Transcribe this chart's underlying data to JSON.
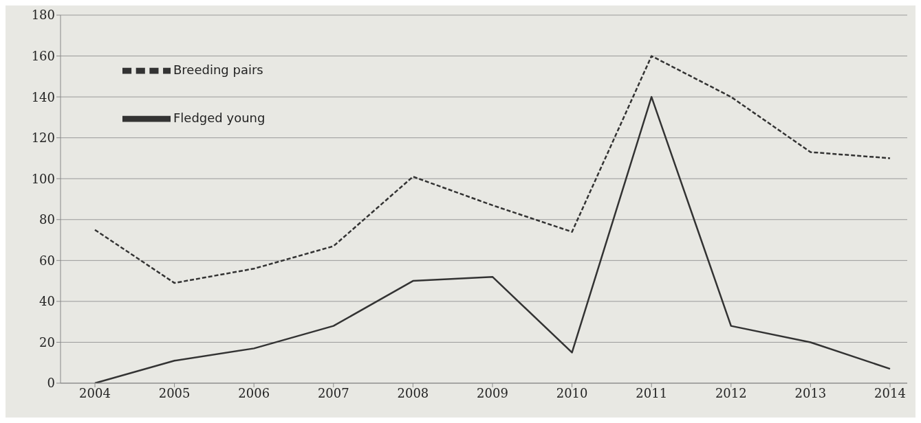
{
  "chart_data": {
    "type": "line",
    "categories": [
      "2004",
      "2005",
      "2006",
      "2007",
      "2008",
      "2009",
      "2010",
      "2011",
      "2012",
      "2013",
      "2014"
    ],
    "series": [
      {
        "name": "Breeding pairs",
        "color": "#333333",
        "line_style": "dashed",
        "values": [
          75,
          49,
          56,
          67,
          101,
          87,
          74,
          160,
          140,
          113,
          110
        ]
      },
      {
        "name": "Fledged young",
        "color": "#333333",
        "line_style": "solid",
        "values": [
          0,
          11,
          17,
          28,
          50,
          52,
          15,
          140,
          28,
          20,
          7
        ]
      }
    ],
    "ylim": [
      0,
      180
    ],
    "yticks": [
      0,
      20,
      40,
      60,
      80,
      100,
      120,
      140,
      160,
      180
    ],
    "grid": "y",
    "legend": "top left",
    "marker": "none"
  }
}
